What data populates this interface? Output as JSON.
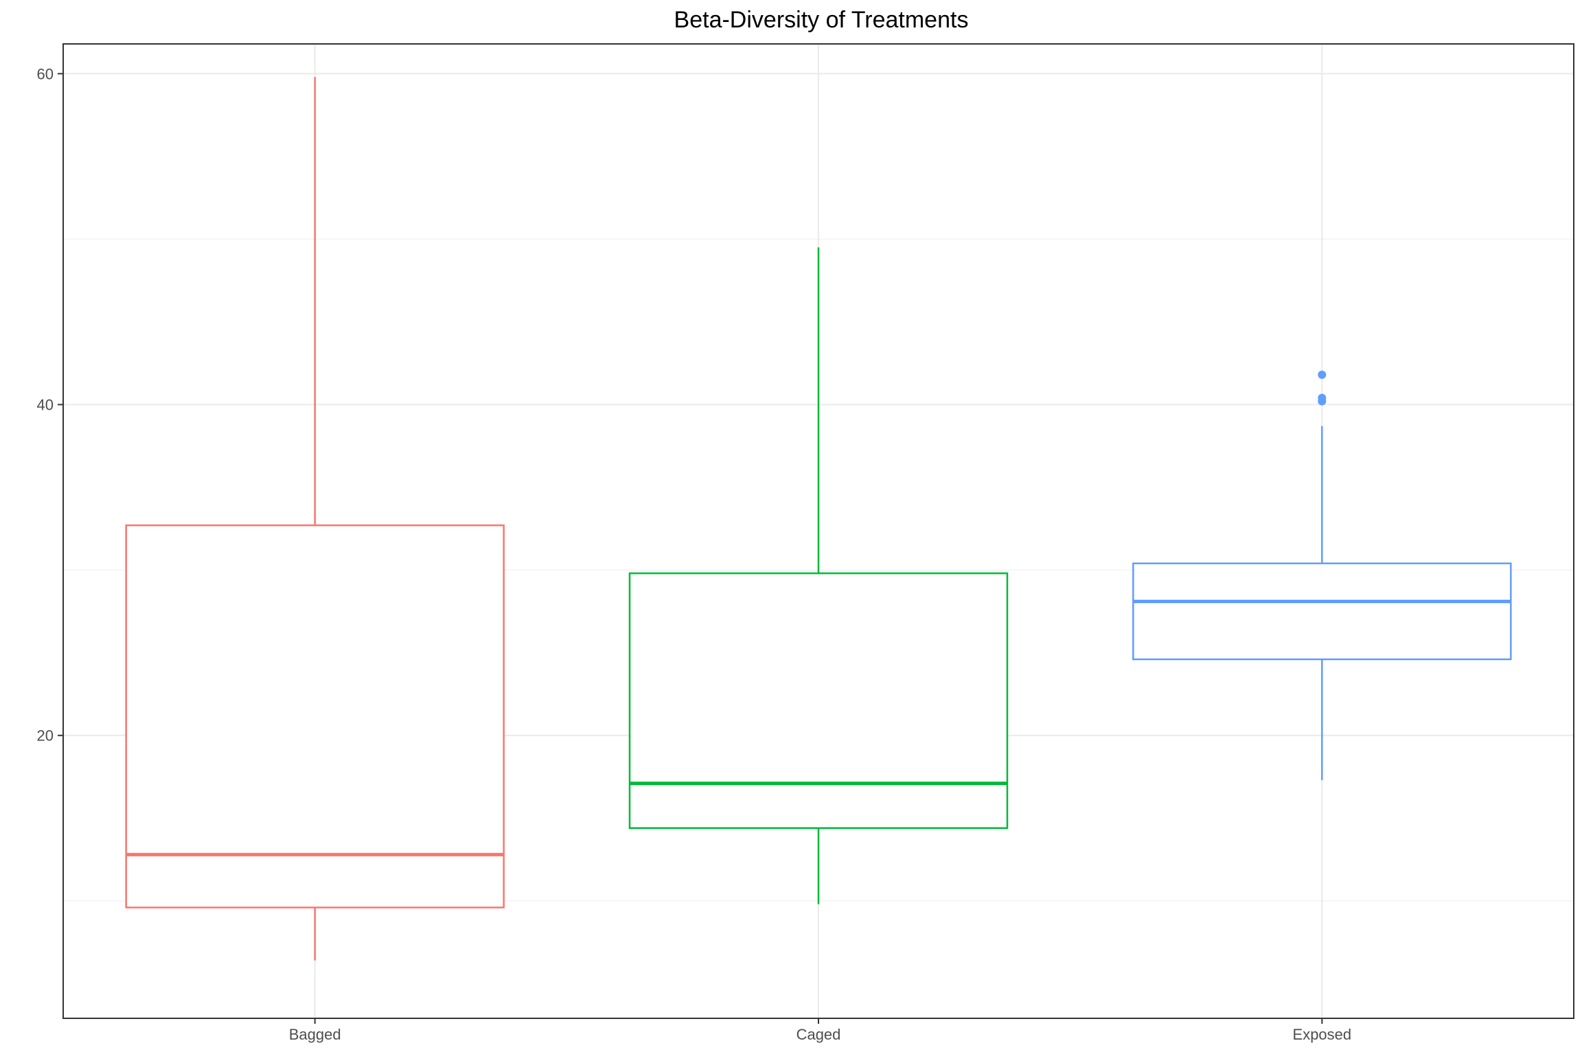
{
  "chart_data": {
    "type": "boxplot",
    "title": "Beta-Diversity of Treatments",
    "xlabel": "",
    "ylabel": "",
    "ylim": [
      2.9,
      61.8
    ],
    "y_ticks": [
      20,
      40,
      60
    ],
    "y_minor_ticks": [
      10,
      30,
      50
    ],
    "grid": true,
    "legend": "none",
    "categories": [
      "Bagged",
      "Caged",
      "Exposed"
    ],
    "boxes": [
      {
        "category": "Bagged",
        "color": "#F8766D",
        "whisker_low": 6.4,
        "q1": 9.6,
        "median": 12.8,
        "q3": 32.7,
        "whisker_high": 59.8,
        "outliers": []
      },
      {
        "category": "Caged",
        "color": "#00BA38",
        "whisker_low": 9.8,
        "q1": 14.4,
        "median": 17.1,
        "q3": 29.8,
        "whisker_high": 49.5,
        "outliers": []
      },
      {
        "category": "Exposed",
        "color": "#619CFF",
        "whisker_low": 17.3,
        "q1": 24.6,
        "median": 28.1,
        "q3": 30.4,
        "whisker_high": 38.7,
        "outliers": [
          40.2,
          40.4,
          41.8
        ]
      }
    ]
  }
}
